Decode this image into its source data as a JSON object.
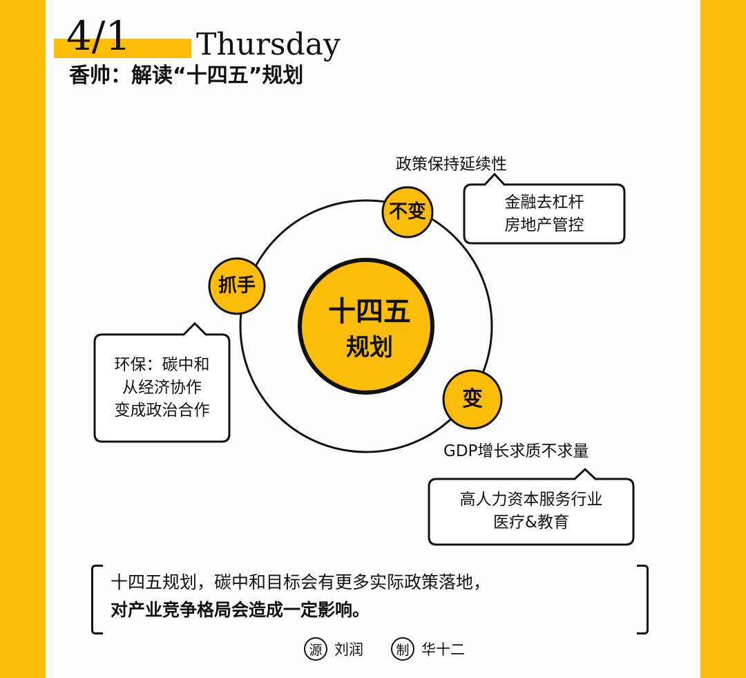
{
  "header": {
    "date": "4/1",
    "weekday": "Thursday",
    "subtitle": "香帅：解读“十四五”规划"
  },
  "diagram": {
    "center": {
      "line1": "十四五",
      "line2": "规划"
    },
    "nodes": {
      "unchanged": {
        "label": "不变",
        "caption": "政策保持延续性",
        "box": [
          "金融去杠杆",
          "房地产管控"
        ]
      },
      "focus": {
        "label": "抓手",
        "box": [
          "环保：碳中和",
          "从经济协作",
          "变成政治合作"
        ]
      },
      "change": {
        "label": "变",
        "caption": "GDP增长求质不求量",
        "box": [
          "高人力资本服务行业",
          "医疗&教育"
        ]
      }
    }
  },
  "summary": {
    "line1": "十四五规划，碳中和目标会有更多实际政策落地，",
    "line2": "对产业竞争格局会造成一定影响。"
  },
  "credits": [
    {
      "badge": "源",
      "name": "刘润"
    },
    {
      "badge": "制",
      "name": "华十二"
    }
  ],
  "colors": {
    "accent": "#fbbd0a",
    "ink": "#111111"
  }
}
